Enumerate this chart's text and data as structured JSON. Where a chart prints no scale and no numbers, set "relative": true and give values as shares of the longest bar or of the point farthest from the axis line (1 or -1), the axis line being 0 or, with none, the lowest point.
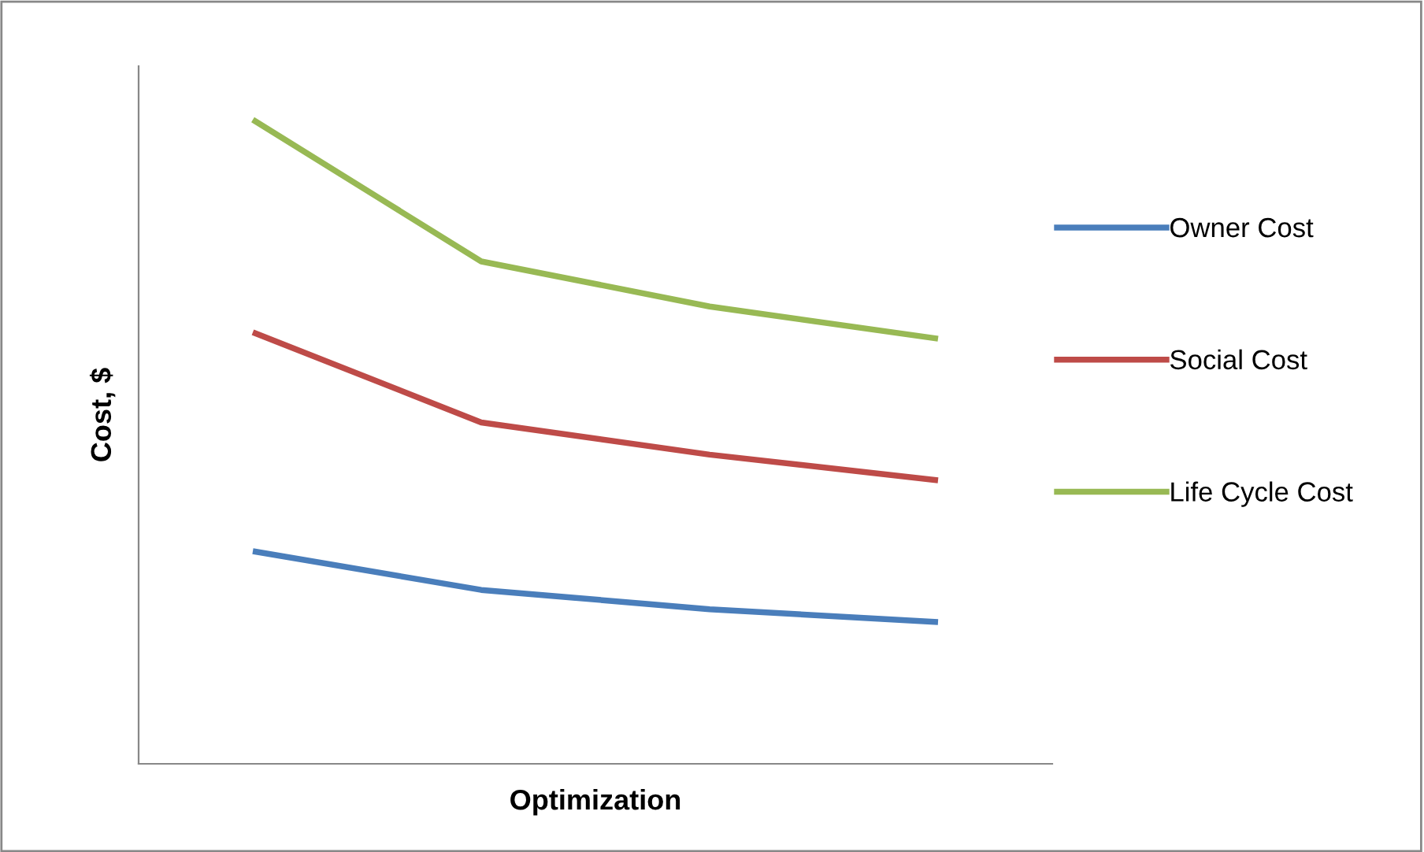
{
  "chart_data": {
    "type": "line",
    "xlabel": "Optimization",
    "ylabel": "Cost, $",
    "relative": true,
    "categories": [
      null,
      null,
      null,
      null
    ],
    "series": [
      {
        "name": "Owner Cost",
        "color": "#4a7ebb",
        "values": [
          0.33,
          0.27,
          0.24,
          0.22
        ]
      },
      {
        "name": "Social Cost",
        "color": "#be4b48",
        "values": [
          0.67,
          0.53,
          0.48,
          0.44
        ]
      },
      {
        "name": "Life Cycle Cost",
        "color": "#98b954",
        "values": [
          1,
          0.78,
          0.71,
          0.66
        ]
      }
    ],
    "legend": "right",
    "grid": false,
    "marker": "none",
    "line_style": "solid"
  }
}
